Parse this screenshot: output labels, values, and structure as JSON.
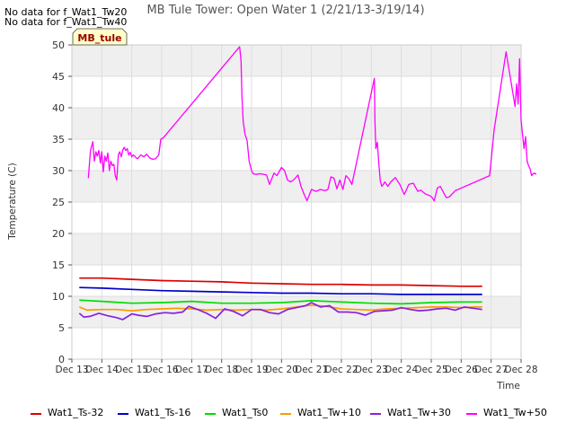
{
  "chart_data": {
    "type": "line",
    "title": "MB Tule Tower: Open Water 1 (2/21/13-3/19/14)",
    "xlabel": "Time",
    "ylabel": "Temperature (C)",
    "ylim": [
      0,
      50
    ],
    "yticks": [
      "0",
      "5",
      "10",
      "15",
      "20",
      "25",
      "30",
      "35",
      "40",
      "45",
      "50"
    ],
    "xlim": [
      13,
      28
    ],
    "xticks": [
      "Dec 13",
      "Dec 14",
      "Dec 15",
      "Dec 16",
      "Dec 17",
      "Dec 18",
      "Dec 19",
      "Dec 20",
      "Dec 21",
      "Dec 22",
      "Dec 23",
      "Dec 24",
      "Dec 25",
      "Dec 26",
      "Dec 27",
      "Dec 28"
    ],
    "no_data_notes": [
      "No data for f_Wat1_Tw20",
      "No data for f_Wat1_Tw40"
    ],
    "annotation": "MB_tule",
    "grid": true,
    "legend_position": "bottom",
    "series": [
      {
        "name": "Wat1_Ts-32",
        "color": "#dd0000",
        "x": [
          13.25,
          14.0,
          15.0,
          16.0,
          17.0,
          18.0,
          19.0,
          20.0,
          21.0,
          22.0,
          23.0,
          24.0,
          25.0,
          26.0,
          26.7
        ],
        "y": [
          12.9,
          12.9,
          12.7,
          12.5,
          12.4,
          12.3,
          12.1,
          12.0,
          11.9,
          11.9,
          11.8,
          11.8,
          11.7,
          11.6,
          11.6
        ]
      },
      {
        "name": "Wat1_Ts-16",
        "color": "#0000cc",
        "x": [
          13.25,
          14.0,
          15.0,
          16.0,
          17.0,
          18.0,
          19.0,
          20.0,
          21.0,
          22.0,
          23.0,
          24.0,
          25.0,
          26.0,
          26.7
        ],
        "y": [
          11.4,
          11.3,
          11.1,
          10.9,
          10.8,
          10.7,
          10.6,
          10.5,
          10.5,
          10.4,
          10.4,
          10.3,
          10.3,
          10.3,
          10.3
        ]
      },
      {
        "name": "Wat1_Ts0",
        "color": "#00dd00",
        "x": [
          13.25,
          14.0,
          15.0,
          16.0,
          17.0,
          18.0,
          19.0,
          20.0,
          21.0,
          22.0,
          23.0,
          24.0,
          25.0,
          26.0,
          26.7
        ],
        "y": [
          9.4,
          9.2,
          8.9,
          9.0,
          9.2,
          8.9,
          8.9,
          9.0,
          9.3,
          9.1,
          8.9,
          8.8,
          9.0,
          9.1,
          9.1
        ]
      },
      {
        "name": "Wat1_Tw+10",
        "color": "#ff9900",
        "x": [
          13.25,
          13.5,
          14.0,
          14.5,
          15.0,
          15.5,
          16.0,
          16.5,
          17.0,
          17.5,
          18.0,
          18.5,
          19.0,
          19.5,
          20.0,
          20.5,
          21.0,
          21.5,
          22.0,
          22.5,
          23.0,
          23.5,
          24.0,
          24.5,
          25.0,
          25.5,
          26.0,
          26.5,
          26.7
        ],
        "y": [
          8.3,
          7.8,
          7.9,
          7.9,
          7.7,
          7.9,
          8.0,
          8.1,
          8.0,
          7.8,
          7.9,
          7.8,
          7.9,
          7.8,
          8.0,
          8.3,
          8.6,
          8.4,
          8.0,
          7.9,
          7.8,
          8.0,
          8.1,
          8.2,
          8.3,
          8.3,
          8.2,
          8.3,
          8.3
        ]
      },
      {
        "name": "Wat1_Tw+30",
        "color": "#8822dd",
        "x": [
          13.25,
          13.4,
          13.6,
          13.9,
          14.2,
          14.5,
          14.7,
          15.0,
          15.2,
          15.5,
          15.8,
          16.1,
          16.4,
          16.7,
          16.9,
          17.2,
          17.5,
          17.8,
          18.1,
          18.4,
          18.7,
          19.0,
          19.3,
          19.6,
          19.9,
          20.2,
          20.5,
          20.8,
          21.0,
          21.3,
          21.6,
          21.9,
          22.2,
          22.5,
          22.8,
          23.1,
          23.4,
          23.7,
          24.0,
          24.3,
          24.6,
          24.9,
          25.2,
          25.5,
          25.8,
          26.1,
          26.4,
          26.7
        ],
        "y": [
          7.3,
          6.7,
          6.8,
          7.3,
          6.9,
          6.6,
          6.3,
          7.2,
          7.0,
          6.8,
          7.2,
          7.4,
          7.3,
          7.5,
          8.4,
          7.9,
          7.3,
          6.5,
          8.0,
          7.6,
          6.9,
          7.9,
          7.9,
          7.4,
          7.2,
          7.9,
          8.2,
          8.5,
          9.0,
          8.3,
          8.5,
          7.5,
          7.5,
          7.4,
          7.0,
          7.6,
          7.7,
          7.8,
          8.2,
          7.9,
          7.7,
          7.8,
          8.0,
          8.1,
          7.8,
          8.3,
          8.1,
          7.9
        ]
      },
      {
        "name": "Wat1_Tw+50",
        "color": "#ff00ff",
        "x": [
          13.55,
          13.62,
          13.7,
          13.75,
          13.8,
          13.85,
          13.9,
          13.95,
          14.0,
          14.05,
          14.1,
          14.15,
          14.2,
          14.25,
          14.3,
          14.35,
          14.4,
          14.45,
          14.5,
          14.55,
          14.6,
          14.65,
          14.7,
          14.75,
          14.8,
          14.85,
          14.9,
          14.95,
          15.0,
          15.05,
          15.1,
          15.15,
          15.2,
          15.3,
          15.4,
          15.5,
          15.6,
          15.7,
          15.8,
          15.9,
          15.97,
          16.05,
          18.6,
          18.65,
          18.68,
          18.72,
          18.78,
          18.85,
          18.92,
          19.0,
          19.05,
          19.15,
          19.3,
          19.5,
          19.6,
          19.75,
          19.85,
          20.0,
          20.1,
          20.2,
          20.3,
          20.4,
          20.55,
          20.65,
          20.75,
          20.85,
          21.0,
          21.15,
          21.3,
          21.45,
          21.55,
          21.65,
          21.75,
          21.85,
          21.95,
          22.05,
          22.15,
          22.25,
          22.35,
          23.1,
          23.12,
          23.15,
          23.2,
          23.25,
          23.3,
          23.35,
          23.4,
          23.45,
          23.55,
          23.65,
          23.8,
          23.95,
          24.1,
          24.25,
          24.4,
          24.55,
          24.65,
          24.8,
          25.0,
          25.1,
          25.2,
          25.3,
          25.5,
          25.6,
          25.7,
          25.8,
          26.95,
          27.1,
          27.5,
          27.8,
          27.85,
          27.9,
          27.95,
          28.0,
          28.05,
          28.1,
          28.15,
          28.2,
          28.25,
          28.3,
          28.35,
          28.4,
          28.45,
          28.5
        ],
        "y": [
          28.8,
          33.2,
          34.6,
          31.5,
          33.0,
          32.3,
          33.2,
          31.2,
          33.0,
          29.8,
          32.3,
          31.5,
          32.8,
          30.0,
          31.5,
          30.8,
          31.0,
          29.2,
          28.5,
          32.5,
          33.0,
          32.2,
          33.3,
          33.7,
          33.2,
          33.5,
          32.5,
          32.9,
          32.2,
          32.5,
          32.3,
          32.0,
          31.9,
          32.5,
          32.2,
          32.6,
          32.0,
          31.8,
          31.9,
          32.5,
          35.0,
          35.2,
          49.7,
          47.5,
          41.8,
          37.8,
          35.8,
          34.8,
          31.5,
          30.0,
          29.5,
          29.4,
          29.5,
          29.3,
          27.8,
          29.6,
          29.2,
          30.5,
          30.0,
          28.5,
          28.2,
          28.5,
          29.3,
          27.5,
          26.3,
          25.2,
          27.0,
          26.7,
          27.0,
          26.8,
          27.0,
          29.0,
          28.8,
          27.1,
          28.5,
          27.0,
          29.2,
          28.7,
          27.8,
          44.7,
          38.0,
          33.5,
          34.5,
          31.0,
          28.3,
          27.5,
          27.8,
          28.2,
          27.5,
          28.2,
          28.9,
          27.8,
          26.2,
          27.8,
          28.0,
          26.7,
          26.9,
          26.3,
          25.9,
          25.2,
          27.2,
          27.5,
          25.7,
          25.8,
          26.3,
          26.8,
          29.2,
          36.5,
          48.9,
          40.2,
          43.8,
          40.6,
          47.8,
          38.0,
          35.6,
          33.5,
          35.4,
          31.5,
          30.8,
          30.3,
          29.2,
          29.5,
          29.6,
          29.4
        ]
      }
    ]
  }
}
